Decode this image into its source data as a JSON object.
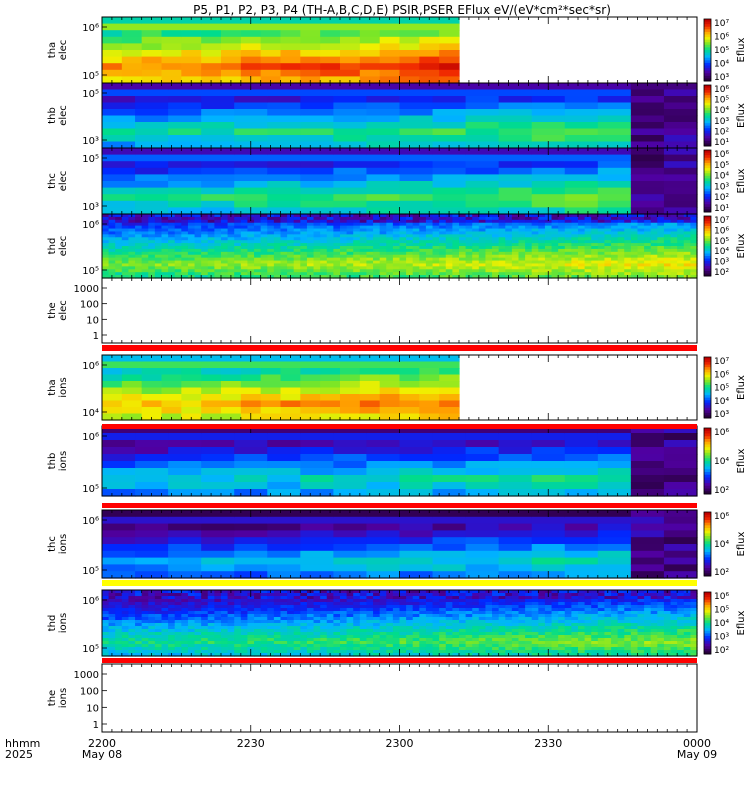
{
  "title": "P5, P1, P2, P3, P4 (TH-A,B,C,D,E) PSIR,PSER EFlux eV/(eV*cm²*sec*sr)",
  "time_axis": {
    "row_labels": [
      "hhmm",
      "2025"
    ],
    "ticks": [
      {
        "t": 0,
        "hhmm": "2200",
        "date": "May 08"
      },
      {
        "t": 30,
        "hhmm": "2230",
        "date": ""
      },
      {
        "t": 60,
        "hhmm": "2300",
        "date": ""
      },
      {
        "t": 90,
        "hhmm": "2330",
        "date": ""
      },
      {
        "t": 120,
        "hhmm": "0000",
        "date": "May 09"
      }
    ],
    "range_minutes": [
      0,
      120
    ]
  },
  "colorbar_label": "Eflux",
  "chart_data": [
    {
      "type": "heatmap",
      "name": "tha elec",
      "ylabel": [
        "tha",
        "elec"
      ],
      "yticks": [
        "10⁶",
        "10⁵"
      ],
      "cbar_ticks": [
        "10⁷",
        "10⁶",
        "10⁵",
        "10⁴",
        "10³"
      ],
      "data_end_min": 72,
      "level": 0.82,
      "dropout_min": null,
      "noisy": false
    },
    {
      "type": "heatmap",
      "name": "thb elec",
      "ylabel": [
        "thb",
        "elec"
      ],
      "yticks": [
        "10⁵",
        "10³"
      ],
      "cbar_ticks": [
        "10⁶",
        "10⁵",
        "10⁴",
        "10³",
        "10²",
        "10¹"
      ],
      "data_end_min": 120,
      "level": 0.48,
      "dropout_min": 104,
      "noisy": false
    },
    {
      "type": "heatmap",
      "name": "thc elec",
      "ylabel": [
        "thc",
        "elec"
      ],
      "yticks": [
        "10⁵",
        "10³"
      ],
      "cbar_ticks": [
        "10⁶",
        "10⁵",
        "10⁴",
        "10³",
        "10²",
        "10¹"
      ],
      "data_end_min": 120,
      "level": 0.5,
      "dropout_min": 104,
      "noisy": false
    },
    {
      "type": "heatmap",
      "name": "thd elec",
      "ylabel": [
        "thd",
        "elec"
      ],
      "yticks": [
        "10⁶",
        "10⁵"
      ],
      "cbar_ticks": [
        "10⁷",
        "10⁶",
        "10⁵",
        "10⁴",
        "10³",
        "10²"
      ],
      "data_end_min": 120,
      "level": 0.6,
      "dropout_min": null,
      "noisy": true
    },
    {
      "type": "line",
      "name": "the elec",
      "ylabel": [
        "the",
        "elec"
      ],
      "yticks": [
        "1000",
        "100",
        "10",
        "1"
      ],
      "empty": true
    },
    {
      "type": "heatmap",
      "name": "tha ions",
      "ylabel": [
        "tha",
        "ions"
      ],
      "yticks": [
        "10⁶",
        "10⁴"
      ],
      "cbar_ticks": [
        "10⁷",
        "10⁶",
        "10⁵",
        "10⁴",
        "10³"
      ],
      "data_end_min": 72,
      "level": 0.75,
      "dropout_min": null,
      "noisy": false
    },
    {
      "type": "heatmap",
      "name": "thb ions",
      "ylabel": [
        "thb",
        "ions"
      ],
      "yticks": [
        "10⁶",
        "10⁵"
      ],
      "cbar_ticks": [
        "10⁶",
        "10⁴",
        "10²"
      ],
      "data_end_min": 120,
      "level": 0.42,
      "dropout_min": 104,
      "noisy": false
    },
    {
      "type": "heatmap",
      "name": "thc ions",
      "ylabel": [
        "thc",
        "ions"
      ],
      "yticks": [
        "10⁶",
        "10⁵"
      ],
      "cbar_ticks": [
        "10⁶",
        "10⁴",
        "10²"
      ],
      "data_end_min": 120,
      "level": 0.38,
      "dropout_min": 104,
      "noisy": false
    },
    {
      "type": "heatmap",
      "name": "thd ions",
      "ylabel": [
        "thd",
        "ions"
      ],
      "yticks": [
        "10⁶",
        "10⁵"
      ],
      "cbar_ticks": [
        "10⁶",
        "10⁵",
        "10⁴",
        "10³",
        "10²"
      ],
      "data_end_min": 120,
      "level": 0.5,
      "dropout_min": null,
      "noisy": true
    },
    {
      "type": "line",
      "name": "the ions",
      "ylabel": [
        "the",
        "ions"
      ],
      "yticks": [
        "1000",
        "100",
        "10",
        "1"
      ],
      "empty": true
    }
  ]
}
